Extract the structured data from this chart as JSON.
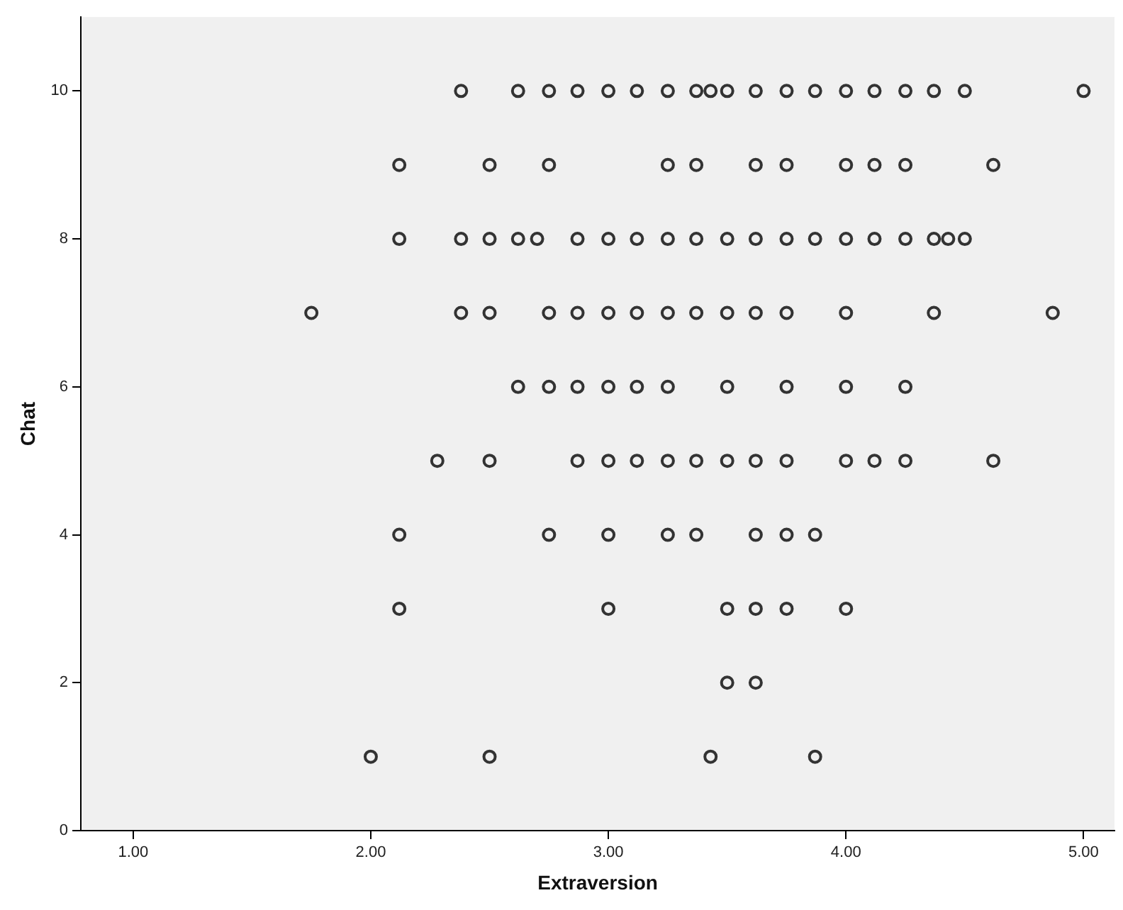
{
  "chart_data": {
    "type": "scatter",
    "xlabel": "Extraversion",
    "ylabel": "Chat",
    "xlim": [
      0.78,
      5.13
    ],
    "ylim": [
      0,
      11
    ],
    "xticks": [
      {
        "value": 1,
        "label": "1.00"
      },
      {
        "value": 2,
        "label": "2.00"
      },
      {
        "value": 3,
        "label": "3.00"
      },
      {
        "value": 4,
        "label": "4.00"
      },
      {
        "value": 5,
        "label": "5.00"
      }
    ],
    "yticks": [
      0,
      2,
      4,
      6,
      8,
      10
    ],
    "grid": false,
    "legend": false,
    "marker": "circle",
    "series": [
      {
        "color": "#333333",
        "x": [
          2.38,
          2.62,
          2.75,
          2.87,
          3.0,
          3.12,
          3.25,
          3.37,
          3.43,
          3.5,
          3.62,
          3.75,
          3.87,
          4.0,
          4.12,
          4.25,
          4.37,
          4.5,
          5.0,
          2.12,
          2.5,
          2.75,
          3.25,
          3.37,
          3.62,
          3.75,
          4.0,
          4.12,
          4.25,
          4.62,
          2.12,
          2.38,
          2.5,
          2.62,
          2.7,
          2.87,
          3.0,
          3.12,
          3.25,
          3.37,
          3.5,
          3.62,
          3.75,
          3.87,
          4.0,
          4.12,
          4.25,
          4.37,
          4.43,
          4.5,
          1.75,
          2.38,
          2.5,
          2.75,
          2.87,
          3.0,
          3.12,
          3.25,
          3.37,
          3.5,
          3.62,
          3.75,
          4.0,
          4.37,
          4.87,
          2.62,
          2.75,
          2.87,
          3.0,
          3.12,
          3.25,
          3.5,
          3.75,
          4.0,
          4.25,
          2.28,
          2.5,
          2.87,
          3.0,
          3.12,
          3.25,
          3.37,
          3.5,
          3.62,
          3.75,
          4.0,
          4.12,
          4.25,
          4.62,
          2.12,
          2.75,
          3.0,
          3.25,
          3.37,
          3.62,
          3.75,
          3.87,
          2.12,
          3.0,
          3.5,
          3.62,
          3.75,
          4.0,
          3.5,
          3.62,
          2.0,
          2.5,
          3.43,
          3.87
        ],
        "values": [
          10,
          10,
          10,
          10,
          10,
          10,
          10,
          10,
          10,
          10,
          10,
          10,
          10,
          10,
          10,
          10,
          10,
          10,
          10,
          9,
          9,
          9,
          9,
          9,
          9,
          9,
          9,
          9,
          9,
          9,
          8,
          8,
          8,
          8,
          8,
          8,
          8,
          8,
          8,
          8,
          8,
          8,
          8,
          8,
          8,
          8,
          8,
          8,
          8,
          8,
          7,
          7,
          7,
          7,
          7,
          7,
          7,
          7,
          7,
          7,
          7,
          7,
          7,
          7,
          7,
          6,
          6,
          6,
          6,
          6,
          6,
          6,
          6,
          6,
          6,
          5,
          5,
          5,
          5,
          5,
          5,
          5,
          5,
          5,
          5,
          5,
          5,
          5,
          5,
          4,
          4,
          4,
          4,
          4,
          4,
          4,
          4,
          3,
          3,
          3,
          3,
          3,
          3,
          2,
          2,
          1,
          1,
          1,
          1
        ]
      }
    ]
  }
}
